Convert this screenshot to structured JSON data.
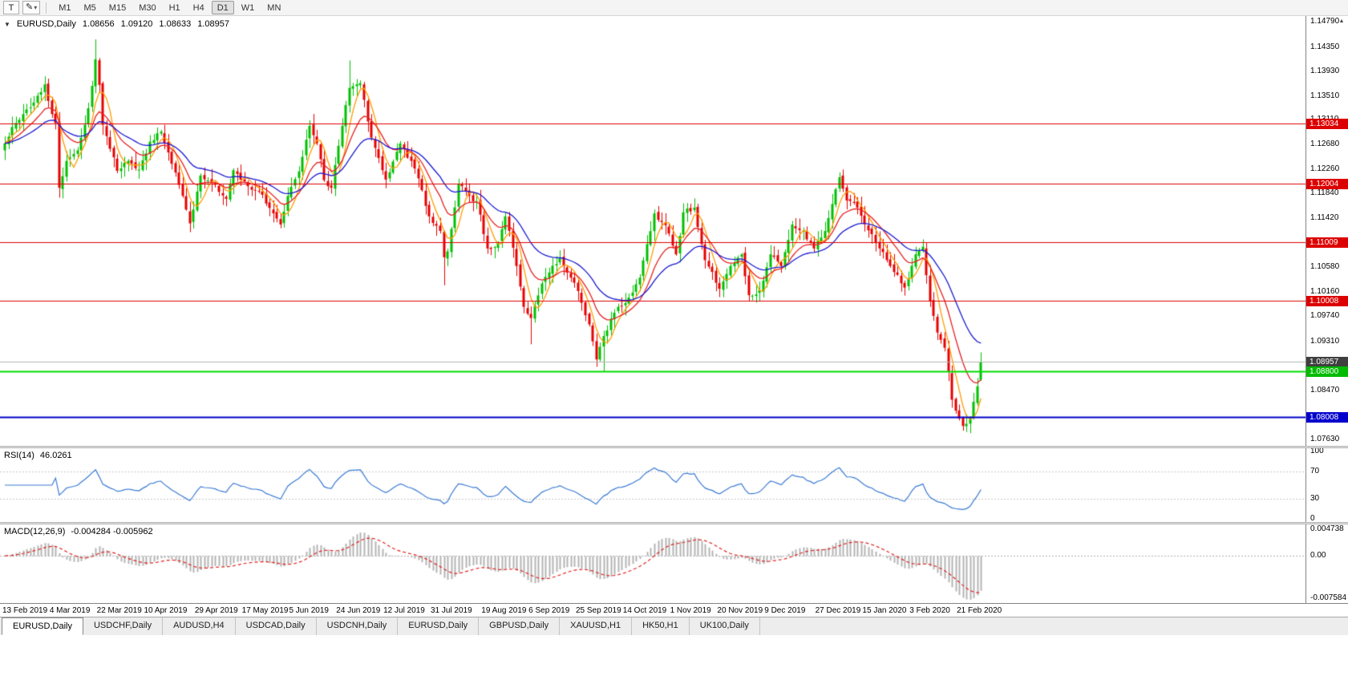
{
  "icons": {
    "collapse": "▼",
    "dropdown_caret": "▾",
    "pencil": "✎",
    "scroll_up": "▲"
  },
  "toolbar": {
    "text_tool_label": "T",
    "timeframes": [
      "M1",
      "M5",
      "M15",
      "M30",
      "H1",
      "H4",
      "D1",
      "W1",
      "MN"
    ],
    "active_timeframe": "D1"
  },
  "chart_header": {
    "symbol_label": "EURUSD,Daily",
    "open": "1.08656",
    "high": "1.09120",
    "low": "1.08633",
    "close": "1.08957"
  },
  "rsi_panel": {
    "label": "RSI(14)",
    "value": "46.0261",
    "levels": [
      {
        "label": "100",
        "value": 100
      },
      {
        "label": "70",
        "value": 70
      },
      {
        "label": "30",
        "value": 30
      },
      {
        "label": "0",
        "value": 0
      }
    ]
  },
  "macd_panel": {
    "label": "MACD(12,26,9)",
    "value": "-0.004284 -0.005962",
    "levels": [
      {
        "label": "0.004738",
        "value": 0.004738
      },
      {
        "label": "0.00",
        "value": 0
      },
      {
        "label": "-0.007584",
        "value": -0.007584
      }
    ]
  },
  "price_axis": {
    "ticks": [
      "1.14790",
      "1.14350",
      "1.13930",
      "1.13510",
      "1.13110",
      "1.12680",
      "1.12260",
      "1.11840",
      "1.11420",
      "1.10580",
      "1.10160",
      "1.09740",
      "1.09310",
      "1.08470",
      "1.07630"
    ]
  },
  "date_axis": {
    "labels": [
      "13 Feb 2019",
      "4 Mar 2019",
      "22 Mar 2019",
      "10 Apr 2019",
      "29 Apr 2019",
      "17 May 2019",
      "5 Jun 2019",
      "24 Jun 2019",
      "12 Jul 2019",
      "31 Jul 2019",
      "19 Aug 2019",
      "6 Sep 2019",
      "25 Sep 2019",
      "14 Oct 2019",
      "1 Nov 2019",
      "20 Nov 2019",
      "9 Dec 2019",
      "27 Dec 2019",
      "15 Jan 2020",
      "3 Feb 2020",
      "21 Feb 2020"
    ]
  },
  "tabs": [
    {
      "label": "EURUSD,Daily",
      "active": true
    },
    {
      "label": "USDCHF,Daily"
    },
    {
      "label": "AUDUSD,H4"
    },
    {
      "label": "USDCAD,Daily"
    },
    {
      "label": "USDCNH,Daily"
    },
    {
      "label": "EURUSD,Daily"
    },
    {
      "label": "GBPUSD,Daily"
    },
    {
      "label": "XAUUSD,H1"
    },
    {
      "label": "HK50,H1"
    },
    {
      "label": "UK100,Daily"
    }
  ],
  "chart_data": {
    "type": "candlestick",
    "symbol": "EURUSD",
    "timeframe": "Daily",
    "bars": 270,
    "bars_per_label": 13.15,
    "price_range": {
      "top": 1.1488,
      "bottom": 1.0752
    },
    "up_color": "#00c000",
    "down_color": "#e80000",
    "last_bar": {
      "open": 1.08656,
      "high": 1.0912,
      "low": 1.08633,
      "close": 1.08957
    },
    "anchors_close": [
      [
        0,
        1.127
      ],
      [
        2,
        1.1298
      ],
      [
        5,
        1.132
      ],
      [
        8,
        1.134
      ],
      [
        11,
        1.1371
      ],
      [
        13,
        1.132
      ],
      [
        14,
        1.1305
      ],
      [
        15,
        1.1194
      ],
      [
        17,
        1.124
      ],
      [
        20,
        1.1258
      ],
      [
        23,
        1.133
      ],
      [
        25,
        1.1414
      ],
      [
        26,
        1.137
      ],
      [
        27,
        1.1302
      ],
      [
        31,
        1.1223
      ],
      [
        34,
        1.124
      ],
      [
        37,
        1.1225
      ],
      [
        40,
        1.1273
      ],
      [
        43,
        1.129
      ],
      [
        46,
        1.1235
      ],
      [
        49,
        1.118
      ],
      [
        51,
        1.1133
      ],
      [
        54,
        1.1215
      ],
      [
        58,
        1.1199
      ],
      [
        61,
        1.1175
      ],
      [
        63,
        1.1224
      ],
      [
        66,
        1.1205
      ],
      [
        69,
        1.119
      ],
      [
        71,
        1.1182
      ],
      [
        74,
        1.115
      ],
      [
        76,
        1.1131
      ],
      [
        78,
        1.118
      ],
      [
        81,
        1.1222
      ],
      [
        84,
        1.13
      ],
      [
        86,
        1.127
      ],
      [
        88,
        1.1207
      ],
      [
        90,
        1.1194
      ],
      [
        93,
        1.13
      ],
      [
        95,
        1.1365
      ],
      [
        98,
        1.1373
      ],
      [
        101,
        1.128
      ],
      [
        105,
        1.1208
      ],
      [
        109,
        1.127
      ],
      [
        112,
        1.124
      ],
      [
        114,
        1.121
      ],
      [
        117,
        1.1145
      ],
      [
        120,
        1.112
      ],
      [
        121,
        1.1075
      ],
      [
        122,
        1.1085
      ],
      [
        125,
        1.12
      ],
      [
        128,
        1.118
      ],
      [
        130,
        1.1171
      ],
      [
        133,
        1.109
      ],
      [
        136,
        1.11
      ],
      [
        138,
        1.1145
      ],
      [
        141,
        1.106
      ],
      [
        143,
        1.099
      ],
      [
        145,
        1.0971
      ],
      [
        148,
        1.103
      ],
      [
        150,
        1.1049
      ],
      [
        153,
        1.1073
      ],
      [
        156,
        1.104
      ],
      [
        158,
        1.1017
      ],
      [
        161,
        1.096
      ],
      [
        163,
        1.09
      ],
      [
        165,
        1.094
      ],
      [
        168,
        1.098
      ],
      [
        172,
        1.1006
      ],
      [
        175,
        1.104
      ],
      [
        179,
        1.115
      ],
      [
        182,
        1.113
      ],
      [
        185,
        1.108
      ],
      [
        187,
        1.1152
      ],
      [
        190,
        1.116
      ],
      [
        193,
        1.107
      ],
      [
        197,
        1.1021
      ],
      [
        200,
        1.106
      ],
      [
        203,
        1.108
      ],
      [
        205,
        1.101
      ],
      [
        208,
        1.1018
      ],
      [
        211,
        1.108
      ],
      [
        214,
        1.106
      ],
      [
        217,
        1.1131
      ],
      [
        220,
        1.112
      ],
      [
        223,
        1.109
      ],
      [
        226,
        1.112
      ],
      [
        230,
        1.1212
      ],
      [
        232,
        1.1172
      ],
      [
        235,
        1.116
      ],
      [
        238,
        1.1121
      ],
      [
        241,
        1.109
      ],
      [
        244,
        1.106
      ],
      [
        248,
        1.1023
      ],
      [
        251,
        1.108
      ],
      [
        253,
        1.1093
      ],
      [
        255,
        1.1
      ],
      [
        257,
        1.0946
      ],
      [
        259,
        1.092
      ],
      [
        261,
        1.0831
      ],
      [
        264,
        1.0786
      ],
      [
        266,
        1.08
      ],
      [
        268,
        1.0854
      ],
      [
        269,
        1.0896
      ]
    ],
    "wick_overrides": [
      {
        "i": 15,
        "l": 1.1177
      },
      {
        "i": 25,
        "h": 1.1448
      },
      {
        "i": 51,
        "l": 1.1118
      },
      {
        "i": 95,
        "h": 1.1412
      },
      {
        "i": 121,
        "l": 1.1027
      },
      {
        "i": 145,
        "l": 1.0926
      },
      {
        "i": 165,
        "l": 1.0879
      },
      {
        "i": 264,
        "l": 1.0778
      }
    ],
    "moving_averages": [
      {
        "period": 5,
        "method": "sma",
        "color": "#ff9c00"
      },
      {
        "period": 12,
        "method": "ema",
        "color": "#e82020"
      },
      {
        "period": 26,
        "method": "ema",
        "color": "#1a1ad2"
      }
    ],
    "horizontal_lines": [
      {
        "label": "1.13034",
        "price": 1.13034,
        "line_color": "#dd0000",
        "badge_color": "#dd0000",
        "width": 1
      },
      {
        "label": "1.12004",
        "price": 1.12004,
        "line_color": "#dd0000",
        "badge_color": "#dd0000",
        "width": 1
      },
      {
        "label": "1.11009",
        "price": 1.11009,
        "line_color": "#dd0000",
        "badge_color": "#dd0000",
        "width": 1
      },
      {
        "label": "1.10008",
        "price": 1.10008,
        "line_color": "#dd0000",
        "badge_color": "#dd0000",
        "width": 1
      },
      {
        "label": "1.08957",
        "price": 1.08957,
        "line_color": "#b4b4b4",
        "badge_color": "#3f3f3f",
        "width": 1,
        "role": "current-price"
      },
      {
        "label": "1.08800",
        "price": 1.088,
        "line_color": "#00dd00",
        "badge_color": "#00bb00",
        "width": 2
      },
      {
        "label": "1.08008",
        "price": 1.08008,
        "line_color": "#0000cc",
        "badge_color": "#0000cc",
        "width": 2
      }
    ],
    "indicators": {
      "rsi": {
        "period": 14,
        "current": 46.0261,
        "levels": [
          70,
          30
        ],
        "color": "#3a7bd5",
        "range": [
          0,
          100
        ]
      },
      "macd": {
        "fast": 12,
        "slow": 26,
        "signal": 9,
        "main": -0.004284,
        "signal_value": -0.005962,
        "axis_max": 0.004738,
        "axis_min": -0.007584,
        "hist_color": "#b4b4b4",
        "signal_color": "#e02020"
      }
    },
    "x_labels_note": "see date_axis.labels"
  }
}
